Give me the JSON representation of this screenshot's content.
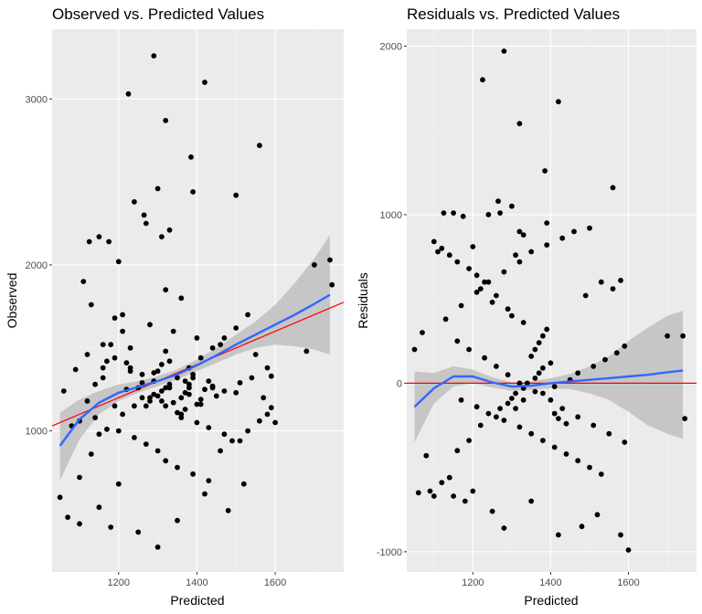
{
  "colors": {
    "panel_background": "#ebebeb",
    "grid_major": "#ffffff",
    "grid_minor": "#f5f5f5",
    "points": "#000000",
    "smooth_line": "#3366ff",
    "confidence_band": "#bdbdbd",
    "reference_line": "#ff0000"
  },
  "chart_data": [
    {
      "id": "observed_vs_predicted",
      "type": "scatter",
      "title": "Observed vs. Predicted Values",
      "xlabel": "Predicted",
      "ylabel": "Observed",
      "xlim": [
        1030,
        1775
      ],
      "ylim": [
        150,
        3420
      ],
      "x_ticks": [
        1200,
        1400,
        1600
      ],
      "y_ticks": [
        1000,
        2000,
        3000
      ],
      "grid": true,
      "reference_line": {
        "kind": "identity",
        "slope": 1,
        "intercept": 0
      },
      "smooth": {
        "x": [
          1050,
          1100,
          1150,
          1200,
          1250,
          1300,
          1350,
          1400,
          1450,
          1500,
          1550,
          1600,
          1650,
          1700,
          1740
        ],
        "y": [
          910,
          1070,
          1170,
          1230,
          1265,
          1300,
          1340,
          1395,
          1455,
          1520,
          1580,
          1640,
          1700,
          1765,
          1820
        ],
        "lower": [
          700,
          950,
          1100,
          1180,
          1230,
          1270,
          1310,
          1360,
          1410,
          1460,
          1500,
          1520,
          1510,
          1490,
          1460
        ],
        "upper": [
          1110,
          1190,
          1240,
          1280,
          1300,
          1330,
          1370,
          1430,
          1500,
          1580,
          1660,
          1760,
          1890,
          2040,
          2180
        ]
      },
      "points": {
        "x": [
          1290,
          1225,
          1420,
          1320,
          1385,
          1560,
          1300,
          1265,
          1390,
          1240,
          1330,
          1500,
          1270,
          1310,
          1150,
          1175,
          1125,
          1200,
          1110,
          1320,
          1360,
          1700,
          1740,
          1745,
          1580,
          1600,
          1680,
          1200,
          1150,
          1100,
          1180,
          1250,
          1300,
          1350,
          1420,
          1480,
          1520,
          1130,
          1210,
          1280,
          1340,
          1400,
          1460,
          1550,
          1170,
          1230,
          1290,
          1370,
          1440,
          1500,
          1060,
          1080,
          1090,
          1120,
          1140,
          1160,
          1190,
          1220,
          1260,
          1310,
          1330,
          1380,
          1410,
          1450,
          1470,
          1510,
          1540,
          1570,
          1590,
          1050,
          1070,
          1100,
          1130,
          1150,
          1200,
          1240,
          1270,
          1300,
          1320,
          1350,
          1390,
          1430,
          1460,
          1490,
          1530,
          1560,
          1580,
          1590,
          1270,
          1280,
          1300,
          1310,
          1330,
          1340,
          1360,
          1370,
          1380,
          1390,
          1400,
          1410,
          1420,
          1430,
          1440,
          1350,
          1360,
          1370,
          1380,
          1390,
          1330,
          1320,
          1310,
          1300,
          1290,
          1250,
          1260,
          1220,
          1230,
          1210,
          1190,
          1180,
          1160,
          1140,
          1120,
          1100,
          1170,
          1210,
          1240,
          1280,
          1320,
          1350,
          1380,
          1410,
          1440,
          1470,
          1500,
          1530,
          1160,
          1190,
          1230,
          1260,
          1290,
          1320,
          1360,
          1400,
          1430,
          1470,
          1510
        ],
        "y": [
          3260,
          3030,
          3100,
          2870,
          2650,
          2720,
          2460,
          2300,
          2440,
          2380,
          2210,
          2420,
          2250,
          2170,
          2170,
          2140,
          2140,
          2020,
          1900,
          1850,
          1800,
          2000,
          2030,
          1880,
          1380,
          1050,
          1480,
          680,
          540,
          440,
          420,
          390,
          300,
          460,
          620,
          520,
          680,
          1760,
          1700,
          1640,
          1600,
          1560,
          1520,
          1460,
          1420,
          1380,
          1350,
          1300,
          1260,
          1230,
          1240,
          1030,
          1370,
          1460,
          1080,
          1320,
          1150,
          1250,
          1200,
          1180,
          1280,
          1220,
          1160,
          1210,
          1240,
          1290,
          1320,
          1200,
          1330,
          600,
          480,
          720,
          860,
          980,
          1000,
          960,
          920,
          880,
          820,
          780,
          740,
          700,
          880,
          940,
          1000,
          1060,
          1100,
          1140,
          1150,
          1180,
          1210,
          1240,
          1260,
          1170,
          1200,
          1230,
          1280,
          1320,
          1160,
          1190,
          1250,
          1300,
          1270,
          1110,
          1080,
          1130,
          1260,
          1340,
          1420,
          1480,
          1400,
          1360,
          1300,
          1260,
          1340,
          1410,
          1500,
          1600,
          1680,
          1520,
          1380,
          1280,
          1180,
          1060,
          1010,
          1100,
          1150,
          1200,
          1260,
          1320,
          1380,
          1440,
          1500,
          1560,
          1620,
          1700,
          1520,
          1440,
          1360,
          1290,
          1220,
          1150,
          1100,
          1050,
          1020,
          980,
          940
        ]
      }
    },
    {
      "id": "residuals_vs_predicted",
      "type": "scatter",
      "title": "Residuals vs. Predicted Values",
      "xlabel": "Predicted",
      "ylabel": "Residuals",
      "xlim": [
        1030,
        1775
      ],
      "ylim": [
        -1120,
        2100
      ],
      "x_ticks": [
        1200,
        1400,
        1600
      ],
      "y_ticks": [
        -1000,
        0,
        1000,
        2000
      ],
      "grid": true,
      "reference_line": {
        "kind": "horizontal",
        "y": 0
      },
      "smooth": {
        "x": [
          1050,
          1100,
          1150,
          1200,
          1250,
          1300,
          1350,
          1400,
          1450,
          1500,
          1550,
          1600,
          1650,
          1700,
          1740
        ],
        "y": [
          -140,
          -30,
          40,
          40,
          5,
          -20,
          -15,
          0,
          10,
          20,
          30,
          40,
          50,
          65,
          75
        ],
        "lower": [
          -350,
          -120,
          -20,
          0,
          -25,
          -45,
          -40,
          -30,
          -35,
          -60,
          -100,
          -170,
          -250,
          -300,
          -330
        ],
        "upper": [
          70,
          60,
          100,
          80,
          35,
          5,
          10,
          30,
          55,
          100,
          160,
          250,
          330,
          400,
          430
        ]
      },
      "points": {
        "x": [
          1280,
          1225,
          1420,
          1320,
          1385,
          1560,
          1300,
          1265,
          1390,
          1240,
          1330,
          1500,
          1270,
          1310,
          1150,
          1175,
          1125,
          1200,
          1110,
          1320,
          1700,
          1740,
          1745,
          1580,
          1600,
          1200,
          1150,
          1100,
          1180,
          1250,
          1280,
          1350,
          1420,
          1480,
          1520,
          1060,
          1080,
          1090,
          1120,
          1140,
          1160,
          1190,
          1220,
          1260,
          1310,
          1330,
          1380,
          1410,
          1450,
          1470,
          1510,
          1540,
          1570,
          1590,
          1050,
          1070,
          1130,
          1170,
          1210,
          1240,
          1280,
          1320,
          1350,
          1390,
          1430,
          1460,
          1490,
          1530,
          1560,
          1580,
          1270,
          1290,
          1300,
          1310,
          1330,
          1340,
          1360,
          1370,
          1380,
          1400,
          1410,
          1420,
          1440,
          1350,
          1360,
          1370,
          1380,
          1390,
          1330,
          1300,
          1290,
          1250,
          1260,
          1220,
          1230,
          1210,
          1190,
          1160,
          1140,
          1120,
          1100,
          1170,
          1210,
          1240,
          1280,
          1320,
          1350,
          1380,
          1410,
          1440,
          1470,
          1500,
          1530,
          1160,
          1190,
          1230,
          1260,
          1290,
          1320,
          1360,
          1400,
          1430,
          1470,
          1510,
          1550,
          1590
        ],
        "y": [
          1970,
          1800,
          1670,
          1540,
          1260,
          1160,
          1050,
          1080,
          950,
          1000,
          880,
          920,
          1010,
          760,
          1010,
          990,
          1010,
          810,
          780,
          900,
          280,
          280,
          -210,
          -900,
          -990,
          -640,
          -670,
          -670,
          -700,
          -760,
          -860,
          -700,
          -900,
          -850,
          -780,
          -650,
          -430,
          -640,
          -590,
          -560,
          -400,
          -340,
          -250,
          -200,
          -150,
          -100,
          -60,
          -20,
          20,
          60,
          100,
          140,
          180,
          220,
          200,
          300,
          380,
          460,
          540,
          600,
          660,
          720,
          780,
          820,
          860,
          900,
          520,
          600,
          560,
          610,
          -150,
          -120,
          -90,
          -60,
          -30,
          0,
          30,
          60,
          90,
          120,
          -180,
          -210,
          -240,
          160,
          200,
          240,
          280,
          320,
          360,
          400,
          440,
          480,
          520,
          560,
          600,
          640,
          680,
          720,
          760,
          800,
          840,
          -100,
          -140,
          -180,
          -220,
          -260,
          -300,
          -340,
          -380,
          -420,
          -460,
          -500,
          -540,
          250,
          200,
          150,
          100,
          50,
          0,
          -50,
          -100,
          -150,
          -200,
          -250,
          -300,
          -350
        ]
      }
    }
  ]
}
